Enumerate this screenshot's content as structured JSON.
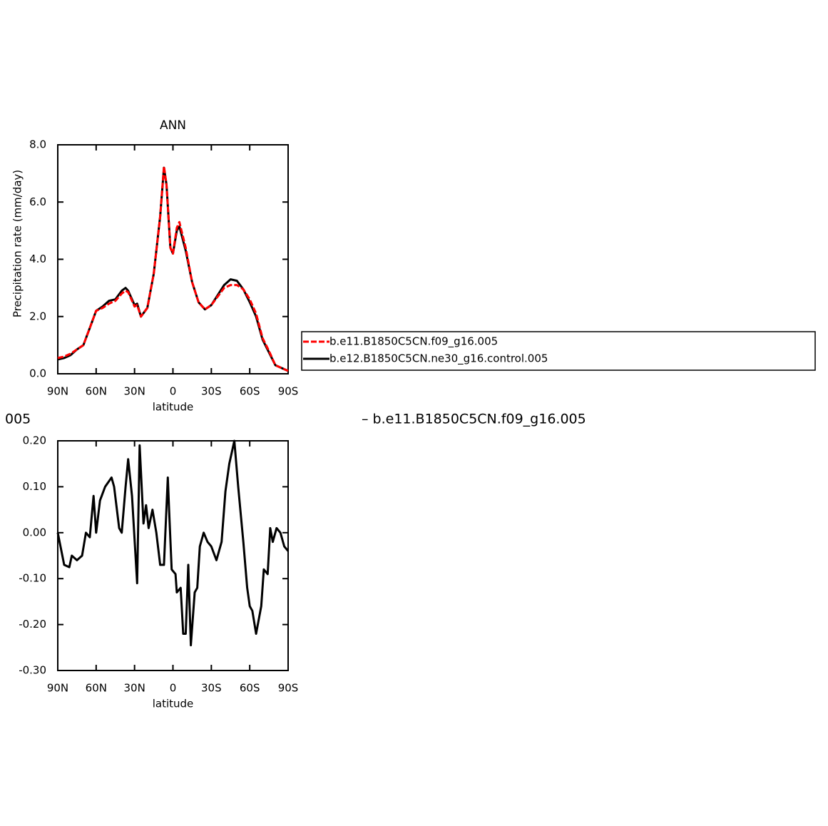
{
  "chart_data": [
    {
      "type": "line",
      "title": "ANN",
      "ylabel": "Precipitation rate (mm/day)",
      "xlabel": "latitude",
      "x": [
        90,
        85,
        80,
        75,
        70,
        65,
        60,
        55,
        50,
        45,
        40,
        37,
        35,
        30,
        28,
        25,
        20,
        15,
        10,
        7,
        5,
        2,
        0,
        -3,
        -5,
        -10,
        -15,
        -20,
        -25,
        -30,
        -35,
        -40,
        -45,
        -50,
        -55,
        -60,
        -65,
        -70,
        -75,
        -80,
        -85,
        -90
      ],
      "xlim": [
        90,
        -90
      ],
      "xticks": [
        {
          "value": 90,
          "label": "90N"
        },
        {
          "value": 60,
          "label": "60N"
        },
        {
          "value": 30,
          "label": "30N"
        },
        0,
        {
          "value": -30,
          "label": "30S"
        },
        {
          "value": -60,
          "label": "60S"
        },
        {
          "value": -90,
          "label": "90S"
        }
      ],
      "ylim": [
        0,
        8
      ],
      "yticks": [
        {
          "value": 0,
          "label": "0.0"
        },
        {
          "value": 2,
          "label": "2.0"
        },
        {
          "value": 4,
          "label": "4.0"
        },
        {
          "value": 6,
          "label": "6.0"
        },
        {
          "value": 8,
          "label": "8.0"
        }
      ],
      "series": [
        {
          "name": "b.e11.B1850C5CN.f09_g16.005",
          "color": "#ff0000",
          "linestyle": "dashed",
          "values": [
            0.55,
            0.6,
            0.7,
            0.85,
            1.0,
            1.6,
            2.2,
            2.3,
            2.45,
            2.55,
            2.8,
            2.9,
            2.85,
            2.35,
            2.4,
            2.0,
            2.3,
            3.5,
            5.5,
            7.25,
            6.6,
            4.4,
            4.2,
            5.1,
            5.3,
            4.4,
            3.2,
            2.5,
            2.25,
            2.4,
            2.7,
            3.0,
            3.1,
            3.1,
            2.95,
            2.6,
            2.1,
            1.25,
            0.8,
            0.3,
            0.2,
            0.1
          ]
        },
        {
          "name": "b.e12.B1850C5CN.ne30_g16.control.005",
          "color": "#000000",
          "linestyle": "solid",
          "values": [
            0.5,
            0.55,
            0.65,
            0.85,
            1.0,
            1.6,
            2.2,
            2.35,
            2.55,
            2.6,
            2.9,
            3.0,
            2.9,
            2.4,
            2.45,
            2.0,
            2.3,
            3.5,
            5.5,
            7.2,
            6.6,
            4.4,
            4.2,
            5.0,
            5.15,
            4.3,
            3.2,
            2.5,
            2.25,
            2.4,
            2.75,
            3.1,
            3.3,
            3.25,
            2.95,
            2.5,
            2.0,
            1.2,
            0.75,
            0.3,
            0.2,
            0.1
          ]
        }
      ]
    },
    {
      "type": "line",
      "title_fragments": [
        "005",
        "– b.e11.B1850C5CN.f09_g16.005"
      ],
      "xlabel": "latitude",
      "color": "#000000",
      "x": [
        90,
        85,
        81,
        79,
        75,
        71,
        68,
        65,
        62,
        60,
        57,
        53,
        48,
        46,
        42,
        40,
        37,
        35,
        32,
        28,
        26,
        23,
        21,
        19,
        16,
        13,
        10,
        7,
        4,
        3,
        1,
        -2,
        -3,
        -6,
        -8,
        -10,
        -12,
        -14,
        -17,
        -19,
        -21,
        -24,
        -27,
        -30,
        -34,
        -38,
        -41,
        -44,
        -48,
        -51,
        -55,
        -58,
        -60,
        -62,
        -65,
        -69,
        -71,
        -74,
        -76,
        -78,
        -81,
        -84,
        -87,
        -90
      ],
      "values": [
        0.0,
        -0.07,
        -0.075,
        -0.05,
        -0.06,
        -0.05,
        0.0,
        -0.01,
        0.08,
        0.0,
        0.07,
        0.1,
        0.12,
        0.1,
        0.01,
        0.0,
        0.1,
        0.16,
        0.08,
        -0.11,
        0.19,
        0.02,
        0.06,
        0.01,
        0.05,
        0.0,
        -0.07,
        -0.07,
        0.12,
        0.05,
        -0.08,
        -0.09,
        -0.13,
        -0.12,
        -0.22,
        -0.22,
        -0.07,
        -0.245,
        -0.13,
        -0.12,
        -0.03,
        0.0,
        -0.02,
        -0.03,
        -0.06,
        -0.02,
        0.09,
        0.15,
        0.2,
        0.1,
        -0.02,
        -0.12,
        -0.16,
        -0.17,
        -0.22,
        -0.16,
        -0.08,
        -0.09,
        0.01,
        -0.02,
        0.01,
        0.0,
        -0.03,
        -0.04
      ],
      "xlim": [
        90,
        -90
      ],
      "xticks": [
        {
          "value": 90,
          "label": "90N"
        },
        {
          "value": 60,
          "label": "60N"
        },
        {
          "value": 30,
          "label": "30N"
        },
        0,
        {
          "value": -30,
          "label": "30S"
        },
        {
          "value": -60,
          "label": "60S"
        },
        {
          "value": -90,
          "label": "90S"
        }
      ],
      "ylim": [
        -0.3,
        0.2
      ],
      "yticks": [
        {
          "value": -0.3,
          "label": "-0.30"
        },
        {
          "value": -0.2,
          "label": "-0.20"
        },
        {
          "value": -0.1,
          "label": "-0.10"
        },
        {
          "value": 0,
          "label": "0.00"
        },
        {
          "value": 0.1,
          "label": "0.10"
        },
        {
          "value": 0.2,
          "label": "0.20"
        }
      ]
    }
  ]
}
